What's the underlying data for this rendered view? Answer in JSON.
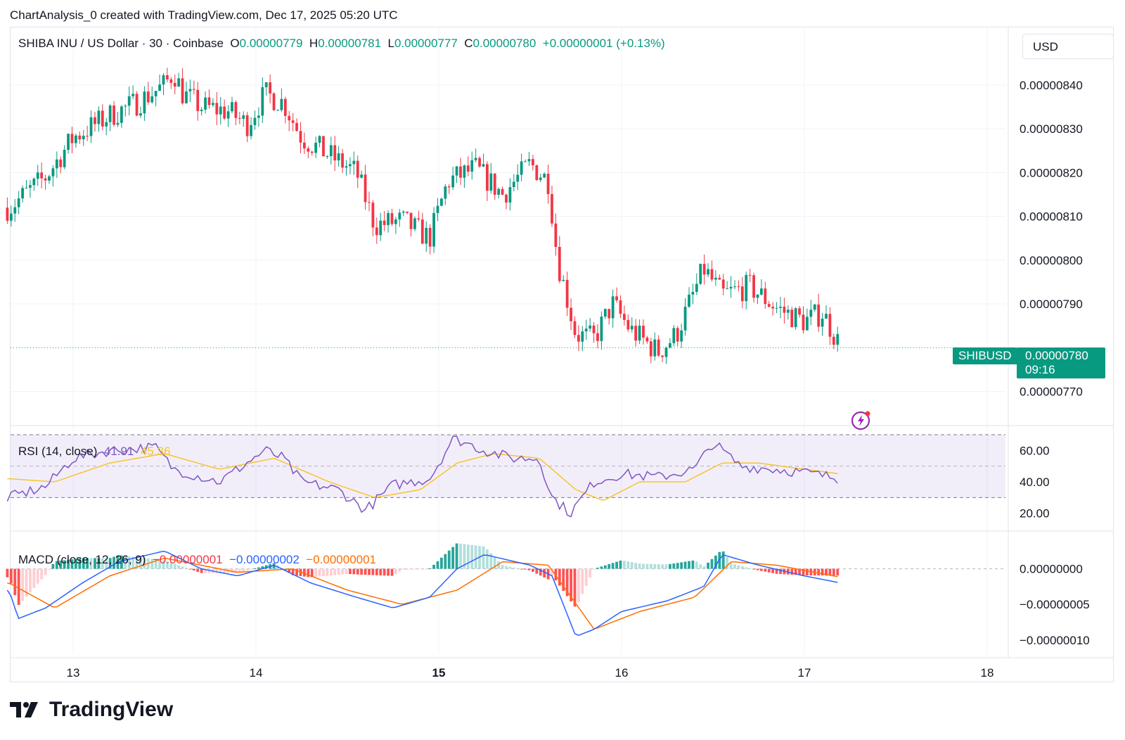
{
  "header": {
    "text": "ChartAnalysis_0 created with TradingView.com, Dec 17, 2025 05:20 UTC"
  },
  "legend": {
    "symbol": "SHIBA INU / US Dollar · 30 · Coinbase",
    "o_label": "O",
    "o": "0.00000779",
    "h_label": "H",
    "h": "0.00000781",
    "l_label": "L",
    "l": "0.00000777",
    "c_label": "C",
    "c": "0.00000780",
    "change": "+0.00000001 (+0.13%)"
  },
  "currency_button": "USD",
  "last_price": {
    "symbol": "SHIBUSD",
    "price": "0.00000780",
    "countdown": "09:16"
  },
  "rsi_legend": {
    "label": "RSI (14, close)",
    "rsi": "41.91",
    "ma": "45.36"
  },
  "macd_legend": {
    "label": "MACD (close, 12, 26, 9)",
    "hist": "−0.00000001",
    "macd": "−0.00000002",
    "signal": "−0.00000001"
  },
  "logo": {
    "text": "TradingView"
  },
  "colors": {
    "up": "#089981",
    "down": "#f23645",
    "macd": "#2962ff",
    "signal": "#ff6d00",
    "rsi": "#7e57c2",
    "rsi_ma": "#f7c430"
  },
  "chart_data": [
    {
      "type": "candlestick",
      "series_name": "SHIBUSD",
      "x_ticks": [
        "13",
        "14",
        "15",
        "16",
        "17",
        "18"
      ],
      "y_ticks": [
        "0.00000840",
        "0.00000830",
        "0.00000820",
        "0.00000810",
        "0.00000800",
        "0.00000790",
        "0.00000770"
      ],
      "ylim": [
        7.63e-06,
        8.53e-06
      ],
      "close_path_anchors": [
        [
          12.65,
          8.12e-06
        ],
        [
          12.85,
          8.19e-06
        ],
        [
          13.0,
          8.28e-06
        ],
        [
          13.2,
          8.33e-06
        ],
        [
          13.35,
          8.36e-06
        ],
        [
          13.5,
          8.4e-06
        ],
        [
          13.55,
          8.43e-06
        ],
        [
          13.6,
          8.38e-06
        ],
        [
          13.7,
          8.35e-06
        ],
        [
          13.85,
          8.34e-06
        ],
        [
          13.95,
          8.31e-06
        ],
        [
          14.05,
          8.38e-06
        ],
        [
          14.15,
          8.36e-06
        ],
        [
          14.25,
          8.28e-06
        ],
        [
          14.4,
          8.24e-06
        ],
        [
          14.55,
          8.2e-06
        ],
        [
          14.65,
          8.08e-06
        ],
        [
          14.8,
          8.09e-06
        ],
        [
          14.95,
          8.05e-06
        ],
        [
          15.05,
          8.18e-06
        ],
        [
          15.2,
          8.21e-06
        ],
        [
          15.35,
          8.15e-06
        ],
        [
          15.5,
          8.22e-06
        ],
        [
          15.6,
          8.18e-06
        ],
        [
          15.65,
          8e-06
        ],
        [
          15.75,
          7.83e-06
        ],
        [
          15.85,
          7.82e-06
        ],
        [
          15.95,
          7.9e-06
        ],
        [
          16.05,
          7.84e-06
        ],
        [
          16.2,
          7.79e-06
        ],
        [
          16.3,
          7.83e-06
        ],
        [
          16.45,
          7.98e-06
        ],
        [
          16.55,
          7.92e-06
        ],
        [
          16.7,
          7.94e-06
        ],
        [
          16.85,
          7.89e-06
        ],
        [
          17.0,
          7.86e-06
        ],
        [
          17.1,
          7.88e-06
        ],
        [
          17.2,
          7.8e-06
        ]
      ],
      "current_price": 7.8e-06
    },
    {
      "type": "line",
      "name": "RSI (14, close)",
      "y_ticks": [
        "60.00",
        "40.00",
        "20.00"
      ],
      "ylim": [
        10,
        70
      ],
      "levels": [
        70,
        50,
        30
      ],
      "rsi_anchors": [
        [
          12.65,
          30
        ],
        [
          12.85,
          37
        ],
        [
          13.0,
          55
        ],
        [
          13.2,
          60
        ],
        [
          13.45,
          62
        ],
        [
          13.55,
          48
        ],
        [
          13.8,
          40
        ],
        [
          14.05,
          60
        ],
        [
          14.15,
          55
        ],
        [
          14.25,
          40
        ],
        [
          14.45,
          35
        ],
        [
          14.6,
          22
        ],
        [
          14.75,
          38
        ],
        [
          14.95,
          42
        ],
        [
          15.08,
          68
        ],
        [
          15.25,
          60
        ],
        [
          15.4,
          55
        ],
        [
          15.55,
          55
        ],
        [
          15.62,
          30
        ],
        [
          15.72,
          20
        ],
        [
          15.85,
          40
        ],
        [
          16.0,
          45
        ],
        [
          16.2,
          43
        ],
        [
          16.4,
          48
        ],
        [
          16.5,
          65
        ],
        [
          16.65,
          50
        ],
        [
          16.85,
          48
        ],
        [
          17.0,
          46
        ],
        [
          17.2,
          42
        ]
      ],
      "ma_anchors": [
        [
          12.65,
          42
        ],
        [
          12.9,
          40
        ],
        [
          13.2,
          52
        ],
        [
          13.5,
          58
        ],
        [
          13.8,
          48
        ],
        [
          14.1,
          55
        ],
        [
          14.4,
          40
        ],
        [
          14.65,
          30
        ],
        [
          14.9,
          35
        ],
        [
          15.1,
          52
        ],
        [
          15.3,
          58
        ],
        [
          15.55,
          55
        ],
        [
          15.75,
          35
        ],
        [
          15.9,
          28
        ],
        [
          16.1,
          40
        ],
        [
          16.35,
          40
        ],
        [
          16.55,
          52
        ],
        [
          16.75,
          52
        ],
        [
          17.0,
          48
        ],
        [
          17.2,
          45
        ]
      ],
      "values": {
        "rsi": 41.91,
        "ma": 45.36
      }
    },
    {
      "type": "bar+line",
      "name": "MACD (close, 12, 26, 9)",
      "y_ticks": [
        "0.00000000",
        "−0.00000005",
        "−0.00000010"
      ],
      "ylim": [
        -1.2e-07,
        5e-08
      ],
      "macd_anchors": [
        [
          12.65,
          -3e-08
        ],
        [
          12.7,
          -7e-08
        ],
        [
          12.85,
          -5.5e-08
        ],
        [
          13.05,
          -2e-08
        ],
        [
          13.25,
          1e-08
        ],
        [
          13.5,
          2.5e-08
        ],
        [
          13.7,
          0.0
        ],
        [
          13.9,
          -1e-08
        ],
        [
          14.1,
          5e-09
        ],
        [
          14.3,
          -2e-08
        ],
        [
          14.55,
          -4e-08
        ],
        [
          14.75,
          -5.5e-08
        ],
        [
          14.95,
          -4e-08
        ],
        [
          15.1,
          0.0
        ],
        [
          15.25,
          2e-08
        ],
        [
          15.5,
          5e-09
        ],
        [
          15.62,
          -1e-08
        ],
        [
          15.75,
          -9.5e-08
        ],
        [
          15.85,
          -8.5e-08
        ],
        [
          16.0,
          -6e-08
        ],
        [
          16.25,
          -4.5e-08
        ],
        [
          16.45,
          -2.5e-08
        ],
        [
          16.55,
          2e-08
        ],
        [
          16.75,
          5e-09
        ],
        [
          17.0,
          -1e-08
        ],
        [
          17.2,
          -2e-08
        ]
      ],
      "signal_anchors": [
        [
          12.65,
          -2e-08
        ],
        [
          12.9,
          -5.5e-08
        ],
        [
          13.2,
          -1e-08
        ],
        [
          13.5,
          1.5e-08
        ],
        [
          13.9,
          -5e-09
        ],
        [
          14.2,
          0.0
        ],
        [
          14.5,
          -3e-08
        ],
        [
          14.8,
          -5e-08
        ],
        [
          15.1,
          -3e-08
        ],
        [
          15.35,
          1e-08
        ],
        [
          15.6,
          5e-09
        ],
        [
          15.85,
          -8.5e-08
        ],
        [
          16.1,
          -6e-08
        ],
        [
          16.4,
          -4e-08
        ],
        [
          16.6,
          1e-08
        ],
        [
          16.85,
          5e-09
        ],
        [
          17.2,
          -1.2e-08
        ]
      ],
      "values": {
        "hist": -1e-08,
        "macd": -2e-08,
        "signal": -1e-08
      }
    }
  ]
}
